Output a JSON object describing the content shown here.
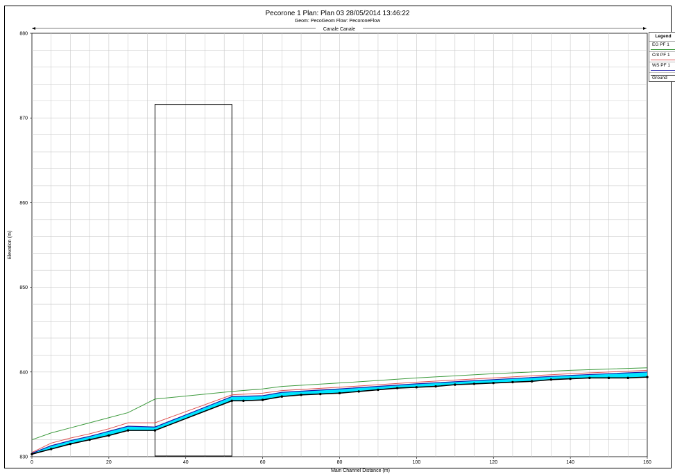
{
  "header": {
    "title": "Pecorone 1     Plan: Plan 03    28/05/2014  13:46:22",
    "subtitle": "Geom: PecoGeom    Flow: PecoroneFlow"
  },
  "reach_label": "Canale Canale",
  "colors": {
    "eg": "#3c9a3c",
    "crit": "#e05050",
    "ws": "#1a1aa8",
    "water_fill": "#00e5ff",
    "ground": "#000000",
    "grid": "#c8c8c8",
    "structure": "#000000"
  },
  "legend": {
    "title": "Legend",
    "items": [
      {
        "key": "eg",
        "label": "EG  PF 1"
      },
      {
        "key": "crit",
        "label": "Crit  PF 1"
      },
      {
        "key": "ws",
        "label": "WS  PF 1"
      },
      {
        "key": "ground",
        "label": "Ground"
      }
    ]
  },
  "chart_data": {
    "type": "line",
    "title": "Pecorone 1     Plan: Plan 03    28/05/2014  13:46:22",
    "xlabel": "Main Channel Distance (m)",
    "ylabel": "Elevation (m)",
    "xlim": [
      0,
      160
    ],
    "ylim": [
      830,
      880
    ],
    "x_ticks": [
      0,
      20,
      40,
      60,
      80,
      100,
      120,
      140,
      160
    ],
    "y_ticks": [
      830,
      840,
      850,
      860,
      870,
      880
    ],
    "grid": true,
    "legend_position": "top-right",
    "structure": {
      "x_start": 32,
      "x_end": 52,
      "top": 871.6
    },
    "series": [
      {
        "name": "EG  PF 1",
        "x": [
          0,
          5,
          10,
          15,
          20,
          25,
          32,
          52,
          60,
          65,
          80,
          100,
          120,
          140,
          160
        ],
        "values": [
          832.0,
          832.8,
          833.4,
          834.0,
          834.6,
          835.2,
          836.8,
          837.7,
          838.0,
          838.3,
          838.7,
          839.3,
          839.8,
          840.2,
          840.5
        ]
      },
      {
        "name": "Crit  PF 1",
        "x": [
          0,
          5,
          10,
          15,
          20,
          25,
          32,
          52,
          60,
          65,
          80,
          100,
          120,
          140,
          160
        ],
        "values": [
          830.5,
          831.6,
          832.2,
          832.7,
          833.3,
          834.0,
          834.0,
          837.3,
          837.5,
          837.8,
          838.2,
          838.8,
          839.3,
          839.8,
          840.2
        ]
      },
      {
        "name": "WS  PF 1",
        "x": [
          0,
          5,
          10,
          15,
          20,
          25,
          32,
          52,
          60,
          65,
          80,
          100,
          120,
          140,
          160
        ],
        "values": [
          830.4,
          831.3,
          831.9,
          832.4,
          833.0,
          833.6,
          833.5,
          837.1,
          837.2,
          837.6,
          838.0,
          838.6,
          839.1,
          839.6,
          840.0
        ]
      },
      {
        "name": "Ground",
        "x": [
          0,
          5,
          10,
          15,
          20,
          25,
          32,
          52,
          55,
          60,
          65,
          70,
          75,
          80,
          85,
          90,
          95,
          100,
          105,
          110,
          115,
          120,
          125,
          130,
          135,
          140,
          145,
          150,
          155,
          160
        ],
        "values": [
          830.3,
          830.9,
          831.5,
          832.0,
          832.5,
          833.1,
          833.1,
          836.6,
          836.6,
          836.7,
          837.1,
          837.3,
          837.4,
          837.5,
          837.7,
          837.9,
          838.1,
          838.2,
          838.3,
          838.5,
          838.6,
          838.7,
          838.8,
          838.9,
          839.1,
          839.2,
          839.3,
          839.3,
          839.3,
          839.4
        ]
      }
    ]
  }
}
